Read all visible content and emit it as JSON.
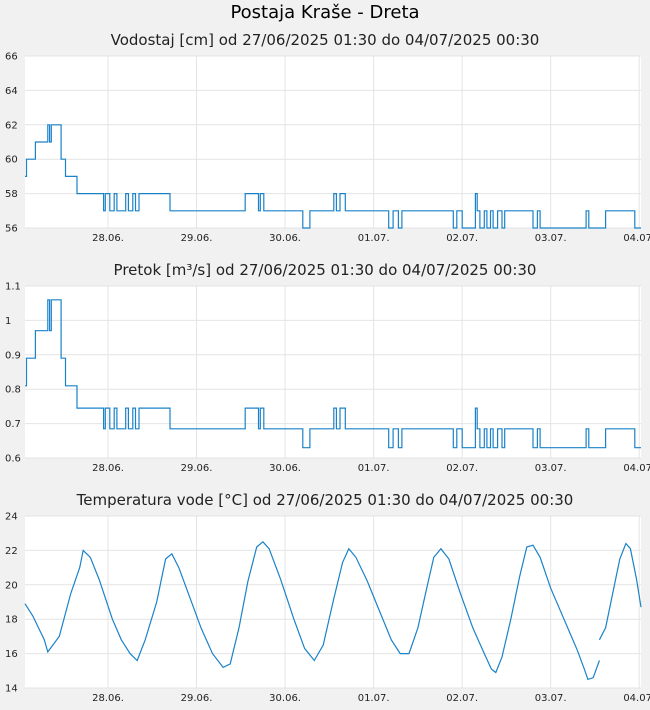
{
  "title": "Postaja Kraše - Dreta",
  "series_color": "#1a82c8",
  "chart_data": [
    {
      "type": "line",
      "title": "Vodostaj [cm] od 27/06/2025 01:30 do 04/07/2025 00:30",
      "ylim": [
        56,
        66
      ],
      "yticks": [
        56,
        58,
        60,
        62,
        64,
        66
      ],
      "x_start_day": 27.0625,
      "x_end_day": 34.02,
      "xticks": [
        {
          "day": 28,
          "label": "28.06."
        },
        {
          "day": 29,
          "label": "29.06."
        },
        {
          "day": 30,
          "label": "30.06."
        },
        {
          "day": 31,
          "label": "01.07."
        },
        {
          "day": 32,
          "label": "02.07."
        },
        {
          "day": 33,
          "label": "03.07."
        },
        {
          "day": 34,
          "label": "04.07."
        }
      ],
      "grid": true,
      "points": [
        [
          27.0625,
          59
        ],
        [
          27.08,
          60
        ],
        [
          27.18,
          61
        ],
        [
          27.32,
          62
        ],
        [
          27.34,
          61
        ],
        [
          27.36,
          62
        ],
        [
          27.47,
          60
        ],
        [
          27.52,
          59
        ],
        [
          27.65,
          58
        ],
        [
          27.95,
          57
        ],
        [
          27.97,
          58
        ],
        [
          28.0,
          58
        ],
        [
          28.02,
          57
        ],
        [
          28.07,
          58
        ],
        [
          28.1,
          57
        ],
        [
          28.2,
          58
        ],
        [
          28.23,
          57
        ],
        [
          28.28,
          58
        ],
        [
          28.31,
          57
        ],
        [
          28.35,
          58
        ],
        [
          28.7,
          57
        ],
        [
          29.55,
          58
        ],
        [
          29.7,
          57
        ],
        [
          29.72,
          58
        ],
        [
          29.76,
          57
        ],
        [
          30.2,
          56
        ],
        [
          30.28,
          57
        ],
        [
          30.55,
          58
        ],
        [
          30.58,
          57
        ],
        [
          30.62,
          58
        ],
        [
          30.68,
          57
        ],
        [
          31.17,
          56
        ],
        [
          31.22,
          57
        ],
        [
          31.28,
          56
        ],
        [
          31.32,
          57
        ],
        [
          31.9,
          56
        ],
        [
          31.94,
          57
        ],
        [
          32.0,
          56
        ],
        [
          32.15,
          58
        ],
        [
          32.17,
          57
        ],
        [
          32.2,
          56
        ],
        [
          32.25,
          57
        ],
        [
          32.28,
          56
        ],
        [
          32.32,
          57
        ],
        [
          32.35,
          56
        ],
        [
          32.4,
          57
        ],
        [
          32.45,
          56
        ],
        [
          32.48,
          57
        ],
        [
          32.8,
          56
        ],
        [
          32.85,
          57
        ],
        [
          32.88,
          56
        ],
        [
          33.4,
          57
        ],
        [
          33.43,
          56
        ],
        [
          33.62,
          57
        ],
        [
          33.95,
          56
        ],
        [
          34.02,
          56
        ]
      ]
    },
    {
      "type": "line",
      "title": "Pretok [m³/s] od 27/06/2025 01:30 do 04/07/2025 00:30",
      "ylim": [
        0.6,
        1.1
      ],
      "yticks": [
        0.6,
        0.7,
        0.8,
        0.9,
        1,
        1.1
      ],
      "x_start_day": 27.0625,
      "x_end_day": 34.02,
      "xticks": [
        {
          "day": 28,
          "label": "28.06."
        },
        {
          "day": 29,
          "label": "29.06."
        },
        {
          "day": 30,
          "label": "30.06."
        },
        {
          "day": 31,
          "label": "01.07."
        },
        {
          "day": 32,
          "label": "02.07."
        },
        {
          "day": 33,
          "label": "03.07."
        },
        {
          "day": 34,
          "label": "04.07."
        }
      ],
      "grid": true,
      "points": [
        [
          27.0625,
          0.81
        ],
        [
          27.08,
          0.89
        ],
        [
          27.18,
          0.97
        ],
        [
          27.32,
          1.06
        ],
        [
          27.34,
          0.97
        ],
        [
          27.36,
          1.06
        ],
        [
          27.47,
          0.89
        ],
        [
          27.52,
          0.81
        ],
        [
          27.65,
          0.745
        ],
        [
          27.95,
          0.685
        ],
        [
          27.97,
          0.745
        ],
        [
          28.0,
          0.745
        ],
        [
          28.02,
          0.685
        ],
        [
          28.07,
          0.745
        ],
        [
          28.1,
          0.685
        ],
        [
          28.2,
          0.745
        ],
        [
          28.23,
          0.685
        ],
        [
          28.28,
          0.745
        ],
        [
          28.31,
          0.685
        ],
        [
          28.35,
          0.745
        ],
        [
          28.7,
          0.685
        ],
        [
          29.55,
          0.745
        ],
        [
          29.7,
          0.685
        ],
        [
          29.72,
          0.745
        ],
        [
          29.76,
          0.685
        ],
        [
          30.2,
          0.63
        ],
        [
          30.28,
          0.685
        ],
        [
          30.55,
          0.745
        ],
        [
          30.58,
          0.685
        ],
        [
          30.62,
          0.745
        ],
        [
          30.68,
          0.685
        ],
        [
          31.17,
          0.63
        ],
        [
          31.22,
          0.685
        ],
        [
          31.28,
          0.63
        ],
        [
          31.32,
          0.685
        ],
        [
          31.9,
          0.63
        ],
        [
          31.94,
          0.685
        ],
        [
          32.0,
          0.63
        ],
        [
          32.15,
          0.745
        ],
        [
          32.17,
          0.685
        ],
        [
          32.2,
          0.63
        ],
        [
          32.25,
          0.685
        ],
        [
          32.28,
          0.63
        ],
        [
          32.32,
          0.685
        ],
        [
          32.35,
          0.63
        ],
        [
          32.4,
          0.685
        ],
        [
          32.45,
          0.63
        ],
        [
          32.48,
          0.685
        ],
        [
          32.8,
          0.63
        ],
        [
          32.85,
          0.685
        ],
        [
          32.88,
          0.63
        ],
        [
          33.4,
          0.685
        ],
        [
          33.43,
          0.63
        ],
        [
          33.62,
          0.685
        ],
        [
          33.95,
          0.63
        ],
        [
          34.02,
          0.63
        ]
      ]
    },
    {
      "type": "line",
      "title": "Temperatura vode [°C] od 27/06/2025 01:30 do 04/07/2025 00:30",
      "ylim": [
        14,
        24
      ],
      "yticks": [
        14,
        16,
        18,
        20,
        22,
        24
      ],
      "x_start_day": 27.0625,
      "x_end_day": 34.02,
      "xticks": [
        {
          "day": 28,
          "label": "28.06."
        },
        {
          "day": 29,
          "label": "29.06."
        },
        {
          "day": 30,
          "label": "30.06."
        },
        {
          "day": 31,
          "label": "01.07."
        },
        {
          "day": 32,
          "label": "02.07."
        },
        {
          "day": 33,
          "label": "03.07."
        },
        {
          "day": 34,
          "label": "04.07."
        }
      ],
      "grid": true,
      "points": [
        [
          27.0625,
          18.9
        ],
        [
          27.15,
          18.2
        ],
        [
          27.28,
          16.8
        ],
        [
          27.32,
          16.1
        ],
        [
          27.45,
          17.0
        ],
        [
          27.58,
          19.5
        ],
        [
          27.68,
          21.0
        ],
        [
          27.72,
          22.0
        ],
        [
          27.8,
          21.6
        ],
        [
          27.9,
          20.3
        ],
        [
          28.05,
          18.0
        ],
        [
          28.15,
          16.8
        ],
        [
          28.25,
          16.0
        ],
        [
          28.33,
          15.6
        ],
        [
          28.42,
          16.8
        ],
        [
          28.55,
          19.0
        ],
        [
          28.65,
          21.5
        ],
        [
          28.72,
          21.8
        ],
        [
          28.8,
          21.0
        ],
        [
          28.9,
          19.6
        ],
        [
          29.05,
          17.5
        ],
        [
          29.18,
          16.0
        ],
        [
          29.3,
          15.2
        ],
        [
          29.38,
          15.4
        ],
        [
          29.48,
          17.5
        ],
        [
          29.58,
          20.2
        ],
        [
          29.68,
          22.2
        ],
        [
          29.75,
          22.5
        ],
        [
          29.82,
          22.1
        ],
        [
          29.95,
          20.3
        ],
        [
          30.1,
          18.0
        ],
        [
          30.22,
          16.3
        ],
        [
          30.33,
          15.6
        ],
        [
          30.43,
          16.5
        ],
        [
          30.55,
          19.2
        ],
        [
          30.65,
          21.3
        ],
        [
          30.72,
          22.1
        ],
        [
          30.8,
          21.6
        ],
        [
          30.93,
          20.2
        ],
        [
          31.08,
          18.3
        ],
        [
          31.2,
          16.8
        ],
        [
          31.3,
          16.0
        ],
        [
          31.4,
          16.0
        ],
        [
          31.5,
          17.5
        ],
        [
          31.6,
          19.8
        ],
        [
          31.68,
          21.6
        ],
        [
          31.76,
          22.1
        ],
        [
          31.85,
          21.5
        ],
        [
          31.98,
          19.5
        ],
        [
          32.12,
          17.5
        ],
        [
          32.25,
          16.0
        ],
        [
          32.33,
          15.1
        ],
        [
          32.38,
          14.9
        ],
        [
          32.45,
          15.8
        ],
        [
          32.55,
          18.0
        ],
        [
          32.65,
          20.5
        ],
        [
          32.73,
          22.2
        ],
        [
          32.8,
          22.3
        ],
        [
          32.88,
          21.6
        ],
        [
          33.0,
          19.8
        ],
        [
          33.15,
          18.0
        ],
        [
          33.3,
          16.2
        ],
        [
          33.38,
          15.1
        ],
        [
          33.42,
          14.5
        ],
        [
          33.48,
          14.6
        ],
        [
          33.55,
          15.6
        ],
        null,
        [
          33.55,
          16.8
        ],
        [
          33.62,
          17.5
        ],
        [
          33.7,
          19.5
        ],
        [
          33.78,
          21.5
        ],
        [
          33.85,
          22.4
        ],
        [
          33.9,
          22.1
        ],
        [
          33.97,
          20.3
        ],
        [
          34.02,
          18.7
        ]
      ]
    }
  ]
}
